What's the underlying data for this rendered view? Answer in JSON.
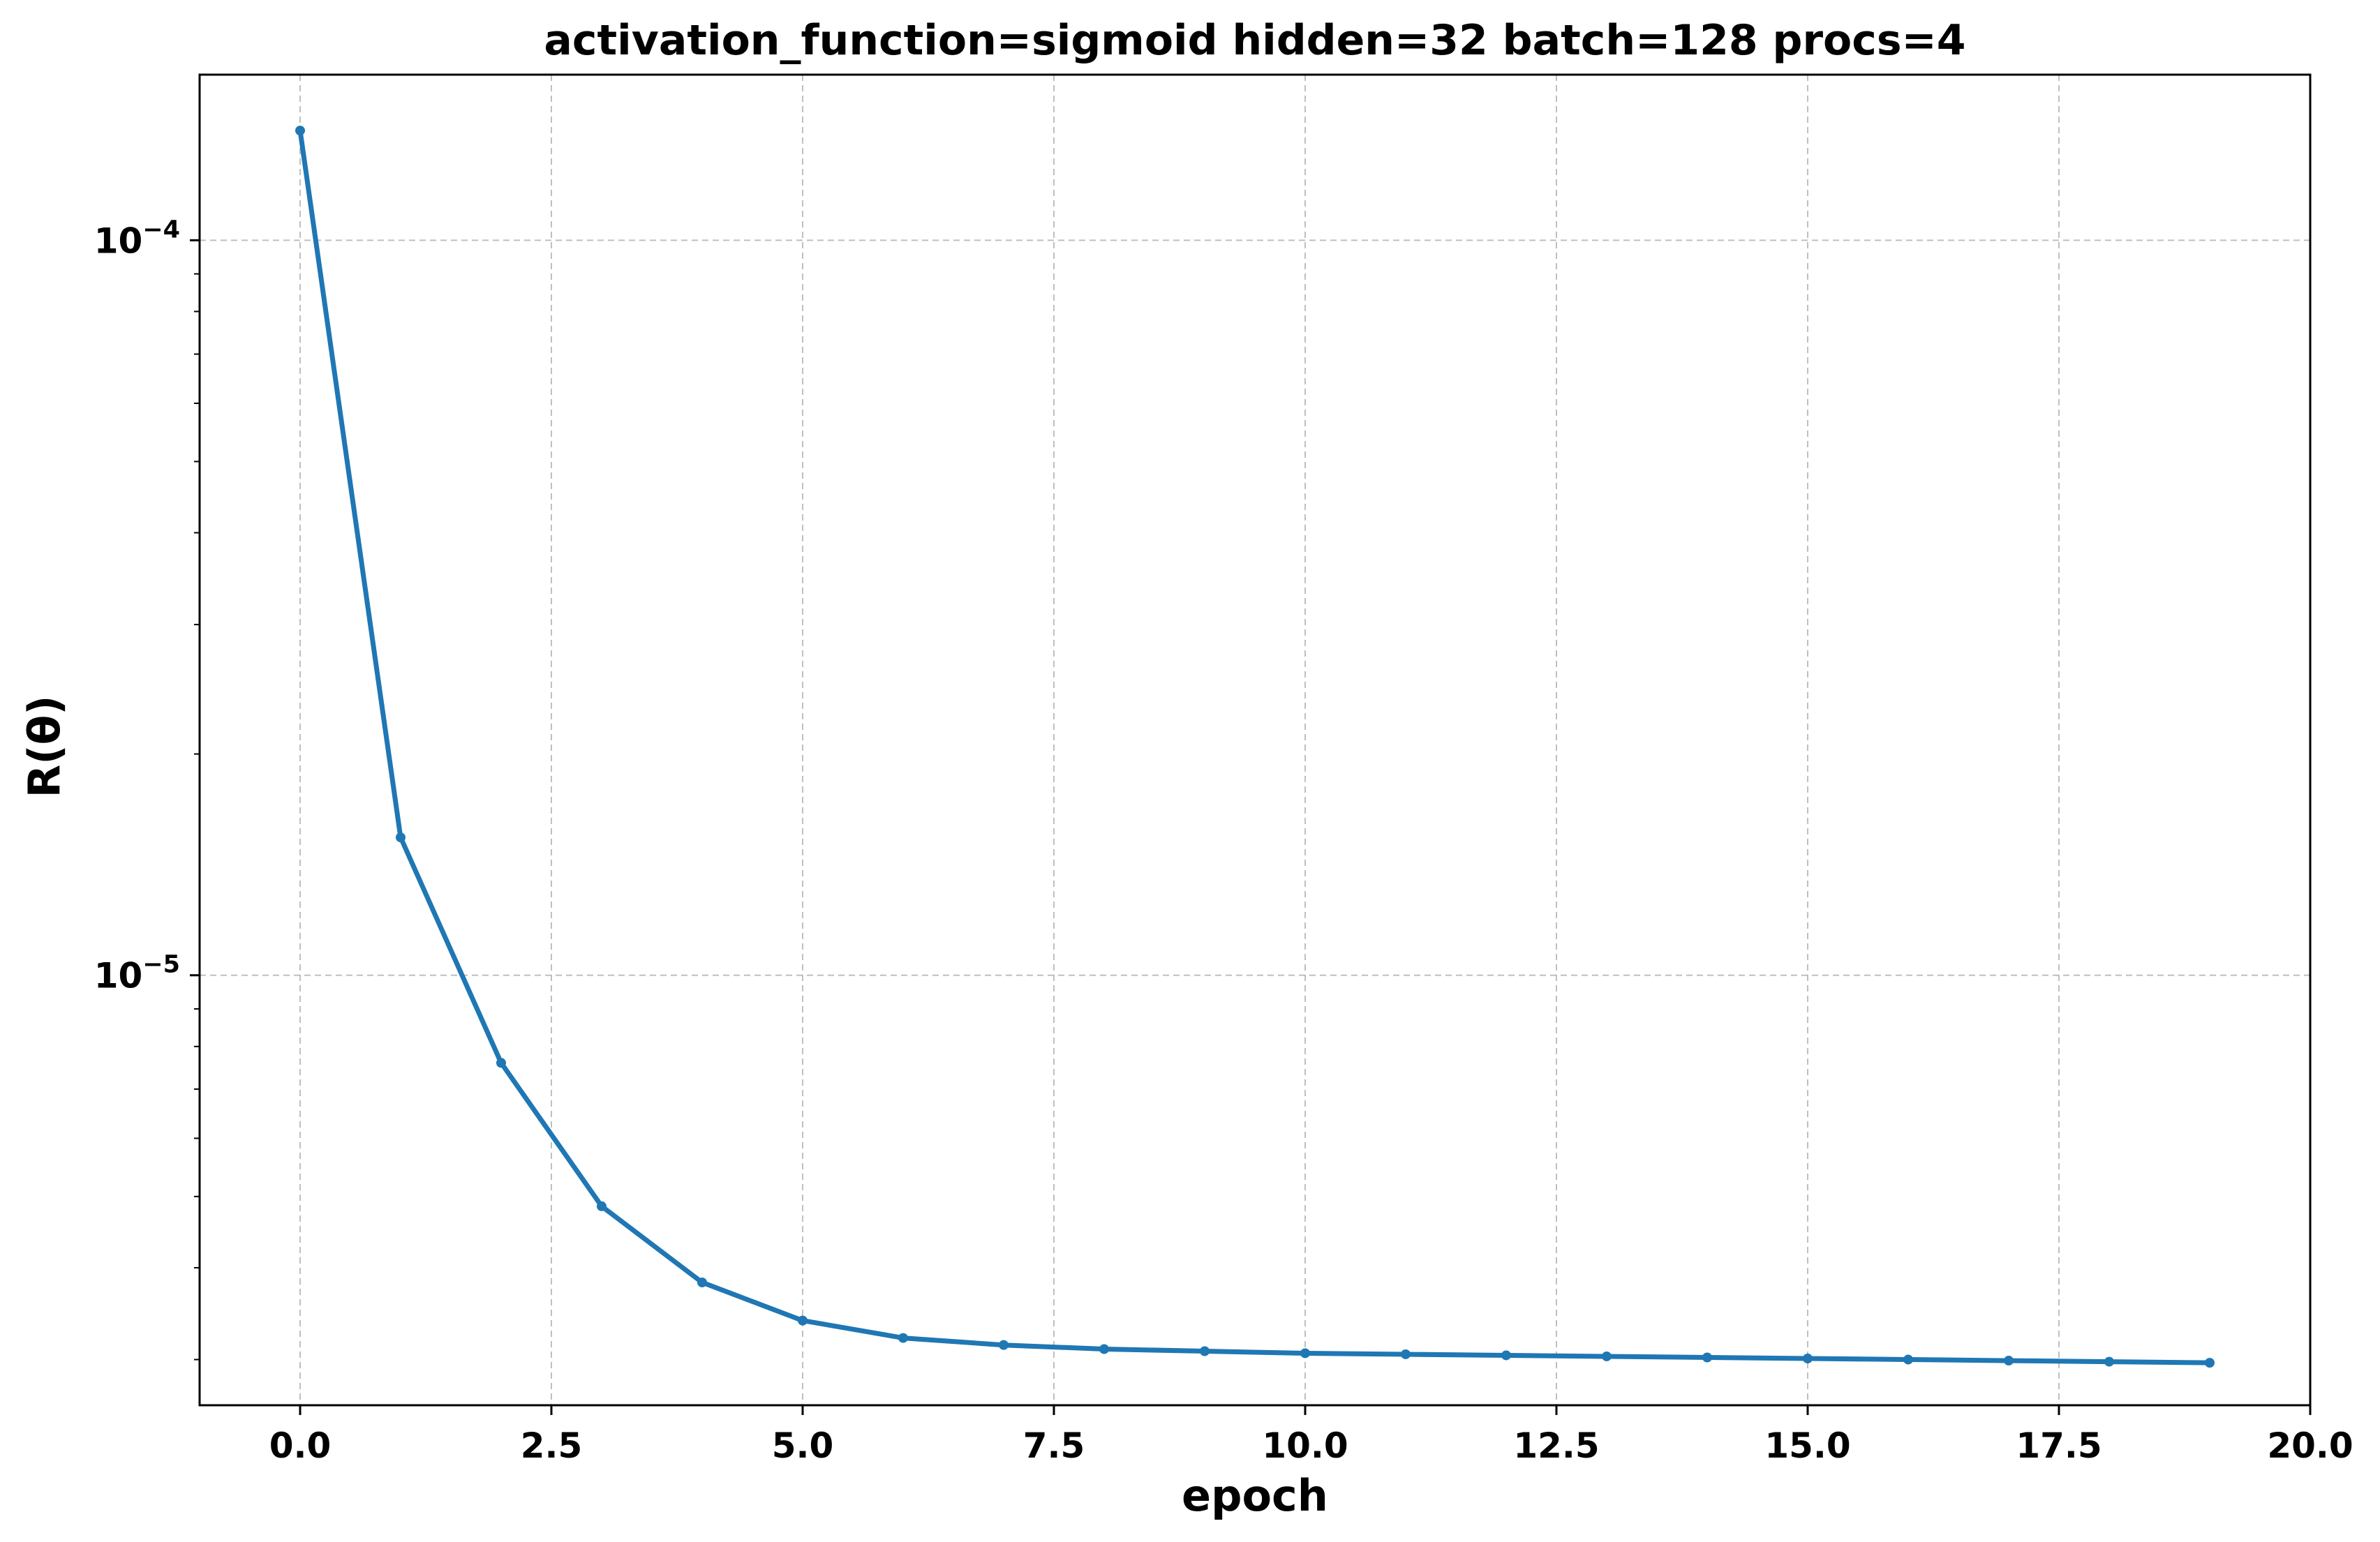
{
  "chart_data": {
    "type": "line",
    "title": "activation_function=sigmoid hidden=32 batch=128 procs=4",
    "xlabel": "epoch",
    "ylabel": "R(θ)",
    "xlim": [
      -1.0,
      20.0
    ],
    "ylim": [
      2.6e-06,
      0.000168
    ],
    "yscale": "log",
    "grid": true,
    "line_color": "#1f77b4",
    "grid_color": "#b0b0b0",
    "x_ticks": [
      0.0,
      2.5,
      5.0,
      7.5,
      10.0,
      12.5,
      15.0,
      17.5,
      20.0
    ],
    "x_tick_labels": [
      "0.0",
      "2.5",
      "5.0",
      "7.5",
      "10.0",
      "12.5",
      "15.0",
      "17.5",
      "20.0"
    ],
    "y_major_ticks": [
      {
        "value": 0.0001,
        "base": "10",
        "exp": "−4"
      },
      {
        "value": 1e-05,
        "base": "10",
        "exp": "−5"
      }
    ],
    "y_minor_ticks": [
      3e-06,
      4e-06,
      5e-06,
      6e-06,
      7e-06,
      8e-06,
      9e-06,
      2e-05,
      3e-05,
      4e-05,
      5e-05,
      6e-05,
      7e-05,
      8e-05,
      9e-05
    ],
    "series": [
      {
        "x": [
          0,
          1,
          2,
          3,
          4,
          5,
          6,
          7,
          8,
          9,
          10,
          11,
          12,
          13,
          14,
          15,
          16,
          17,
          18,
          19
        ],
        "values": [
          0.000141,
          1.54e-05,
          7.6e-06,
          4.85e-06,
          3.82e-06,
          3.39e-06,
          3.21e-06,
          3.14e-06,
          3.1e-06,
          3.08e-06,
          3.06e-06,
          3.05e-06,
          3.04e-06,
          3.03e-06,
          3.02e-06,
          3.01e-06,
          3e-06,
          2.99e-06,
          2.98e-06,
          2.97e-06
        ]
      }
    ]
  }
}
